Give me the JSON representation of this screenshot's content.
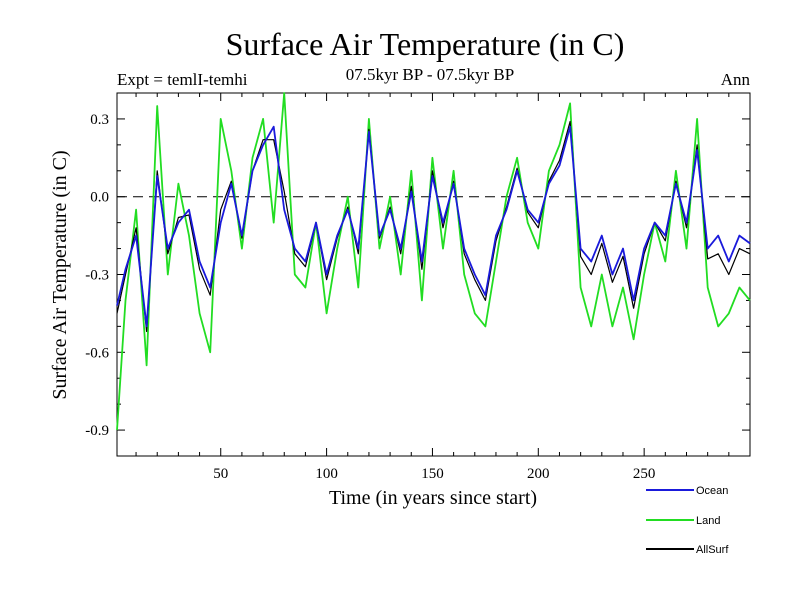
{
  "chart_data": {
    "type": "line",
    "title": "Surface Air Temperature (in C)",
    "subtitle": "07.5kyr BP - 07.5kyr BP",
    "experiment": "Expt = temlI-temhi",
    "season": "Ann",
    "xlabel": "Time (in years since start)",
    "ylabel": "Surface Air Temperature (in C)",
    "xlim": [
      1,
      300
    ],
    "ylim": [
      -1.0,
      0.4
    ],
    "xticks": [
      50,
      100,
      150,
      200,
      250
    ],
    "yticks": [
      0.3,
      0.0,
      -0.3,
      -0.6,
      -0.9
    ],
    "ytick_labels": [
      "0.3",
      "0.0",
      "-0.3",
      "-0.6",
      "-0.9"
    ],
    "zero_line": 0.0,
    "series": [
      {
        "name": "Ocean",
        "color": "#1a1adb",
        "x": [
          1,
          5,
          10,
          15,
          20,
          25,
          30,
          35,
          40,
          45,
          50,
          55,
          60,
          65,
          70,
          75,
          80,
          85,
          90,
          95,
          100,
          105,
          110,
          115,
          120,
          125,
          130,
          135,
          140,
          145,
          150,
          155,
          160,
          165,
          170,
          175,
          180,
          185,
          190,
          195,
          200,
          205,
          210,
          215,
          220,
          225,
          230,
          235,
          240,
          245,
          250,
          255,
          260,
          265,
          270,
          275,
          280,
          285,
          290,
          295,
          300
        ],
        "values": [
          -0.42,
          -0.28,
          -0.15,
          -0.5,
          0.08,
          -0.2,
          -0.1,
          -0.05,
          -0.25,
          -0.35,
          -0.1,
          0.05,
          -0.15,
          0.1,
          0.2,
          0.27,
          -0.05,
          -0.2,
          -0.25,
          -0.1,
          -0.3,
          -0.15,
          -0.05,
          -0.2,
          0.25,
          -0.15,
          -0.05,
          -0.2,
          0.02,
          -0.25,
          0.08,
          -0.1,
          0.05,
          -0.2,
          -0.3,
          -0.38,
          -0.15,
          -0.05,
          0.1,
          -0.05,
          -0.1,
          0.05,
          0.12,
          0.27,
          -0.2,
          -0.25,
          -0.15,
          -0.3,
          -0.2,
          -0.4,
          -0.2,
          -0.1,
          -0.15,
          0.05,
          -0.1,
          0.18,
          -0.2,
          -0.15,
          -0.25,
          -0.15,
          -0.18
        ]
      },
      {
        "name": "Land",
        "color": "#22dd22",
        "x": [
          1,
          5,
          10,
          15,
          20,
          25,
          30,
          35,
          40,
          45,
          50,
          55,
          60,
          65,
          70,
          75,
          80,
          85,
          90,
          95,
          100,
          105,
          110,
          115,
          120,
          125,
          130,
          135,
          140,
          145,
          150,
          155,
          160,
          165,
          170,
          175,
          180,
          185,
          190,
          195,
          200,
          205,
          210,
          215,
          220,
          225,
          230,
          235,
          240,
          245,
          250,
          255,
          260,
          265,
          270,
          275,
          280,
          285,
          290,
          295,
          300
        ],
        "values": [
          -0.9,
          -0.4,
          -0.05,
          -0.65,
          0.35,
          -0.3,
          0.05,
          -0.15,
          -0.45,
          -0.6,
          0.3,
          0.1,
          -0.2,
          0.15,
          0.3,
          -0.1,
          0.4,
          -0.3,
          -0.35,
          -0.1,
          -0.45,
          -0.2,
          0.0,
          -0.35,
          0.3,
          -0.2,
          0.0,
          -0.3,
          0.1,
          -0.4,
          0.15,
          -0.2,
          0.1,
          -0.3,
          -0.45,
          -0.5,
          -0.25,
          0.0,
          0.15,
          -0.1,
          -0.2,
          0.1,
          0.2,
          0.36,
          -0.35,
          -0.5,
          -0.3,
          -0.5,
          -0.35,
          -0.55,
          -0.3,
          -0.1,
          -0.25,
          0.1,
          -0.2,
          0.3,
          -0.35,
          -0.5,
          -0.45,
          -0.35,
          -0.4
        ]
      },
      {
        "name": "AllSurf",
        "color": "#000000",
        "x": [
          1,
          5,
          10,
          15,
          20,
          25,
          30,
          35,
          40,
          45,
          50,
          55,
          60,
          65,
          70,
          75,
          80,
          85,
          90,
          95,
          100,
          105,
          110,
          115,
          120,
          125,
          130,
          135,
          140,
          145,
          150,
          155,
          160,
          165,
          170,
          175,
          180,
          185,
          190,
          195,
          200,
          205,
          210,
          215,
          220,
          225,
          230,
          235,
          240,
          245,
          250,
          255,
          260,
          265,
          270,
          275,
          280,
          285,
          290,
          295,
          300
        ],
        "values": [
          -0.45,
          -0.3,
          -0.12,
          -0.52,
          0.1,
          -0.22,
          -0.08,
          -0.07,
          -0.28,
          -0.38,
          -0.05,
          0.06,
          -0.16,
          0.1,
          0.22,
          0.22,
          0.02,
          -0.22,
          -0.27,
          -0.1,
          -0.32,
          -0.16,
          -0.04,
          -0.22,
          0.26,
          -0.16,
          -0.04,
          -0.22,
          0.04,
          -0.28,
          0.1,
          -0.12,
          0.06,
          -0.22,
          -0.32,
          -0.4,
          -0.17,
          -0.04,
          0.11,
          -0.06,
          -0.12,
          0.06,
          0.14,
          0.29,
          -0.23,
          -0.3,
          -0.18,
          -0.33,
          -0.23,
          -0.43,
          -0.22,
          -0.1,
          -0.17,
          0.06,
          -0.12,
          0.2,
          -0.24,
          -0.22,
          -0.3,
          -0.2,
          -0.22
        ]
      }
    ],
    "legend_position": "bottom-right"
  }
}
